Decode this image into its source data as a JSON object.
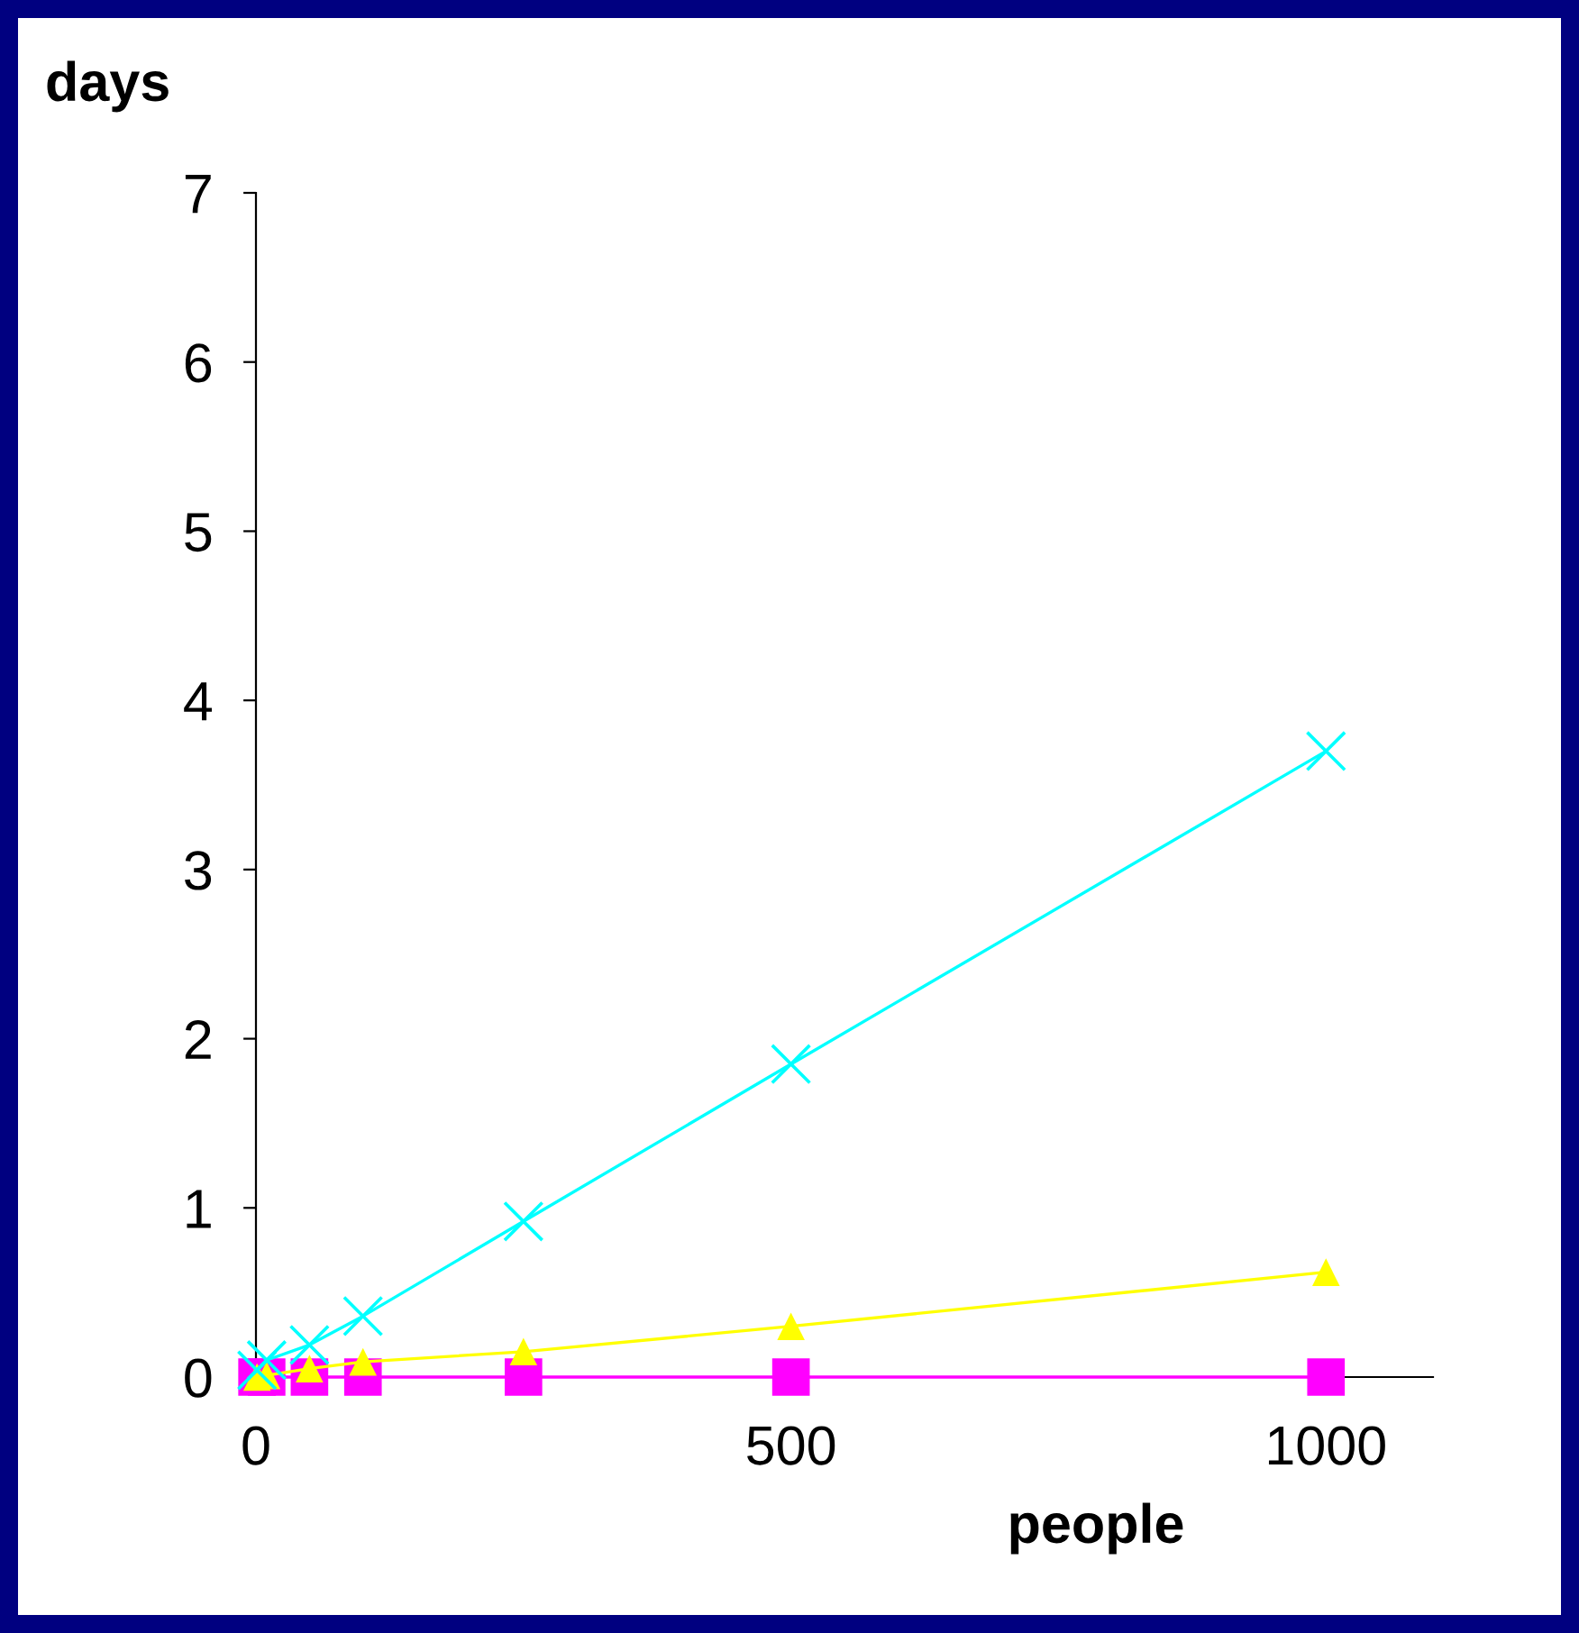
{
  "chart_data": {
    "type": "line",
    "xlabel": "people",
    "ylabel": "days",
    "x": [
      1,
      10,
      50,
      100,
      250,
      500,
      1000
    ],
    "series": [
      {
        "color": "#00ffff",
        "marker": "cross",
        "values": [
          0.04,
          0.1,
          0.19,
          0.36,
          0.92,
          1.85,
          3.7
        ]
      },
      {
        "color": "#ffff00",
        "marker": "triangle",
        "values": [
          0,
          0.01,
          0.05,
          0.09,
          0.15,
          0.3,
          0.62
        ]
      },
      {
        "color": "#ff00ff",
        "marker": "square",
        "values": [
          0,
          0,
          0,
          0,
          0,
          0,
          0
        ]
      }
    ],
    "xlim": [
      0,
      1100
    ],
    "ylim": [
      0,
      7
    ],
    "xticks": [
      0,
      500,
      1000
    ],
    "yticks": [
      0,
      1,
      2,
      3,
      4,
      5,
      6,
      7
    ],
    "grid": false,
    "legend": false
  }
}
